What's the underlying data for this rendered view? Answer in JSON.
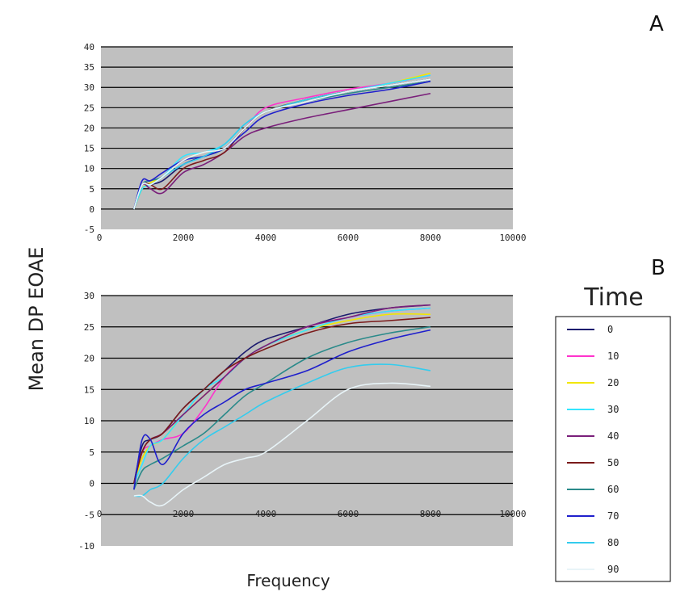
{
  "figure": {
    "ylabel": "Mean DP EOAE",
    "xlabel": "Frequency"
  },
  "legend": {
    "title": "Time",
    "entries": [
      {
        "label": "0",
        "color": "#1a1a6e"
      },
      {
        "label": "10",
        "color": "#ff33cc"
      },
      {
        "label": "20",
        "color": "#f2e600"
      },
      {
        "label": "30",
        "color": "#33e6ff"
      },
      {
        "label": "40",
        "color": "#7a1f7a"
      },
      {
        "label": "50",
        "color": "#7a1a1a"
      },
      {
        "label": "60",
        "color": "#2a8a8a"
      },
      {
        "label": "70",
        "color": "#1f1fcc"
      },
      {
        "label": "80",
        "color": "#33ccee"
      },
      {
        "label": "90",
        "color": "#e8f4f8"
      }
    ]
  },
  "chart_data": [
    {
      "type": "line",
      "panel": "A",
      "xlim": [
        0,
        10000
      ],
      "ylim": [
        -5,
        40
      ],
      "xticks": [
        0,
        2000,
        4000,
        6000,
        8000,
        10000
      ],
      "yticks": [
        -5,
        0,
        5,
        10,
        15,
        20,
        25,
        30,
        35,
        40
      ],
      "grid": "horizontal",
      "background": "#c0c0c0",
      "series": [
        {
          "name": "0",
          "x": [
            800,
            1000,
            1200,
            1500,
            2000,
            2500,
            3000,
            3500,
            4000,
            5000,
            6000,
            7000,
            8000
          ],
          "y": [
            0,
            5,
            6,
            7,
            11,
            13,
            15,
            20,
            24,
            27,
            29,
            30.5,
            32
          ]
        },
        {
          "name": "10",
          "x": [
            800,
            1000,
            1200,
            1500,
            2000,
            2500,
            3000,
            3500,
            4000,
            5000,
            6000,
            7000,
            8000
          ],
          "y": [
            0,
            6,
            7,
            8,
            12,
            14,
            15,
            20,
            25,
            27.5,
            29.5,
            31,
            33
          ]
        },
        {
          "name": "20",
          "x": [
            800,
            1000,
            1200,
            1500,
            2000,
            2500,
            3000,
            3500,
            4000,
            5000,
            6000,
            7000,
            8000
          ],
          "y": [
            0,
            5,
            6.5,
            8,
            12,
            14,
            15,
            20,
            24,
            27,
            29,
            31,
            33.5
          ]
        },
        {
          "name": "30",
          "x": [
            800,
            1000,
            1200,
            1500,
            2000,
            2500,
            3000,
            3500,
            4000,
            5000,
            6000,
            7000,
            8000
          ],
          "y": [
            0,
            5,
            6,
            8,
            13,
            14,
            16,
            21,
            24,
            27,
            29,
            31,
            33
          ]
        },
        {
          "name": "40",
          "x": [
            800,
            1000,
            1200,
            1500,
            2000,
            2500,
            3000,
            3500,
            4000,
            5000,
            6000,
            7000,
            8000
          ],
          "y": [
            0,
            6,
            5,
            4,
            9,
            11,
            14,
            18,
            20,
            22.5,
            24.5,
            26.5,
            28.5
          ]
        },
        {
          "name": "50",
          "x": [
            800,
            1000,
            1200,
            1500,
            2000,
            2500,
            3000,
            3500,
            4000,
            5000,
            6000,
            7000,
            8000
          ],
          "y": [
            0,
            6,
            6,
            5,
            10,
            12,
            14,
            20,
            24,
            27,
            29,
            30.5,
            32
          ]
        },
        {
          "name": "60",
          "x": [
            800,
            1000,
            1200,
            1500,
            2000,
            2500,
            3000,
            3500,
            4000,
            5000,
            6000,
            7000,
            8000
          ],
          "y": [
            0,
            6,
            7,
            8,
            12,
            13,
            15,
            20,
            24,
            26.5,
            28.5,
            30,
            31.5
          ]
        },
        {
          "name": "70",
          "x": [
            800,
            1000,
            1200,
            1500,
            2000,
            2500,
            3000,
            3500,
            4000,
            5000,
            6000,
            7000,
            8000
          ],
          "y": [
            0,
            7,
            7,
            9,
            12,
            13,
            15,
            19,
            23,
            26,
            28,
            29.5,
            31.5
          ]
        },
        {
          "name": "80",
          "x": [
            800,
            1000,
            1200,
            1500,
            2000,
            2500,
            3000,
            3500,
            4000,
            5000,
            6000,
            7000,
            8000
          ],
          "y": [
            0,
            6,
            6,
            8,
            11,
            13,
            16,
            21,
            24,
            27,
            29,
            30.5,
            32
          ]
        },
        {
          "name": "90",
          "x": [
            800,
            1000,
            1200,
            1500,
            2000,
            2500,
            3000,
            3500,
            4000,
            5000,
            6000,
            7000,
            8000
          ],
          "y": [
            0,
            6,
            6,
            8,
            12,
            14,
            15,
            20,
            24,
            26.5,
            29,
            30.5,
            32
          ]
        }
      ]
    },
    {
      "type": "line",
      "panel": "B",
      "xlim": [
        0,
        10000
      ],
      "ylim": [
        -10,
        30
      ],
      "xticks": [
        0,
        2000,
        4000,
        6000,
        8000,
        10000
      ],
      "yticks": [
        -10,
        -5,
        0,
        5,
        10,
        15,
        20,
        25,
        30
      ],
      "grid": "horizontal",
      "background": "#c0c0c0",
      "series": [
        {
          "name": "0",
          "x": [
            800,
            1000,
            1200,
            1500,
            2000,
            2500,
            3000,
            3500,
            4000,
            5000,
            6000,
            7000,
            8000
          ],
          "y": [
            0,
            6,
            7,
            8,
            12,
            15,
            18,
            21,
            23,
            25,
            27,
            28,
            28.5
          ]
        },
        {
          "name": "10",
          "x": [
            800,
            1000,
            1200,
            1500,
            2000,
            2500,
            3000,
            3500,
            4000,
            5000,
            6000,
            7000,
            8000
          ],
          "y": [
            0,
            5,
            6,
            7,
            8,
            12,
            17,
            20,
            22,
            25,
            26.5,
            27.5,
            28
          ]
        },
        {
          "name": "20",
          "x": [
            800,
            1000,
            1200,
            1500,
            2000,
            2500,
            3000,
            3500,
            4000,
            5000,
            6000,
            7000,
            8000
          ],
          "y": [
            0,
            4,
            6,
            7,
            11,
            14,
            17,
            20,
            22,
            24.5,
            26,
            27,
            27
          ]
        },
        {
          "name": "30",
          "x": [
            800,
            1000,
            1200,
            1500,
            2000,
            2500,
            3000,
            3500,
            4000,
            5000,
            6000,
            7000,
            8000
          ],
          "y": [
            0,
            3,
            6,
            7,
            11,
            15,
            17,
            20,
            22,
            24.5,
            26.5,
            27.5,
            28
          ]
        },
        {
          "name": "40",
          "x": [
            800,
            1000,
            1200,
            1500,
            2000,
            2500,
            3000,
            3500,
            4000,
            5000,
            6000,
            7000,
            8000
          ],
          "y": [
            0,
            5,
            7,
            8,
            11,
            14,
            17,
            20,
            22,
            25,
            26.5,
            28,
            28.5
          ]
        },
        {
          "name": "50",
          "x": [
            800,
            1000,
            1200,
            1500,
            2000,
            2500,
            3000,
            3500,
            4000,
            5000,
            6000,
            7000,
            8000
          ],
          "y": [
            0,
            5,
            7,
            8,
            12,
            15,
            18,
            20,
            21.5,
            24,
            25.5,
            26,
            26.5
          ]
        },
        {
          "name": "60",
          "x": [
            800,
            1000,
            1200,
            1500,
            2000,
            2500,
            3000,
            3500,
            4000,
            5000,
            6000,
            7000,
            8000
          ],
          "y": [
            -1,
            2,
            3,
            4,
            6,
            8,
            11,
            14,
            16,
            20,
            22.5,
            24,
            25
          ]
        },
        {
          "name": "70",
          "x": [
            800,
            1000,
            1200,
            1500,
            2000,
            2500,
            3000,
            3500,
            4000,
            5000,
            6000,
            7000,
            8000
          ],
          "y": [
            -1,
            7,
            7,
            3,
            8,
            11,
            13,
            15,
            16,
            18,
            21,
            23,
            24.5
          ]
        },
        {
          "name": "80",
          "x": [
            800,
            1000,
            1200,
            1500,
            2000,
            2500,
            3000,
            3500,
            4000,
            5000,
            6000,
            7000,
            8000
          ],
          "y": [
            -2,
            -2,
            -1,
            0,
            4,
            7,
            9,
            11,
            13,
            16,
            18.5,
            19,
            18
          ]
        },
        {
          "name": "90",
          "x": [
            800,
            1000,
            1200,
            1500,
            2000,
            2500,
            3000,
            3500,
            4000,
            5000,
            6000,
            7000,
            8000
          ],
          "y": [
            -2,
            -2,
            -3,
            -3.5,
            -1,
            1,
            3,
            4,
            5,
            10,
            15,
            16,
            15.5
          ]
        }
      ]
    }
  ]
}
